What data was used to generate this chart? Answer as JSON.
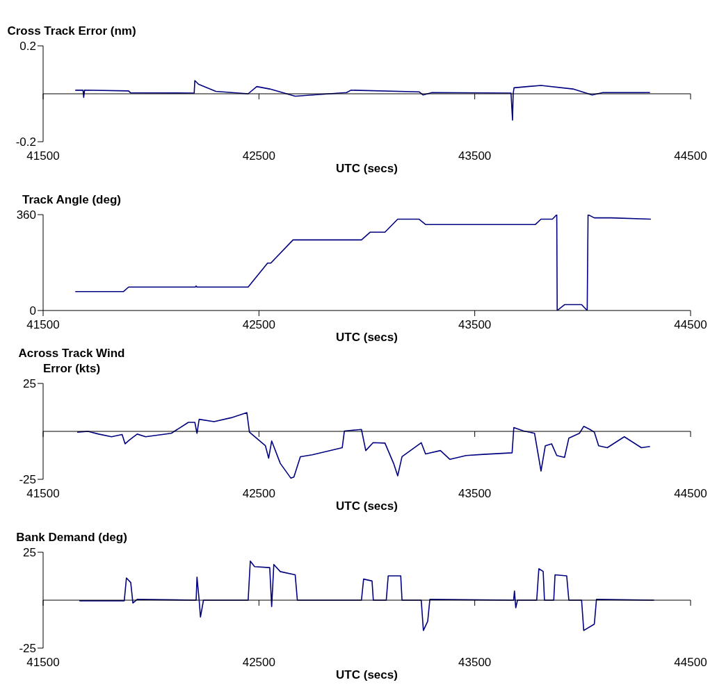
{
  "chart_data": [
    {
      "type": "line",
      "ylabel": "Cross Track Error (nm)",
      "xlabel": "UTC (secs)",
      "xlim": [
        41500,
        44500
      ],
      "xticks": [
        41500,
        42500,
        43500,
        44500
      ],
      "ylim": [
        -0.2,
        0.2
      ],
      "yticks": [
        -0.2,
        0.2
      ],
      "x": [
        41649,
        41685,
        41688,
        41692,
        41896,
        41905,
        42200,
        42203,
        42220,
        42300,
        42450,
        42490,
        42550,
        42668,
        42906,
        42926,
        43242,
        43260,
        43302,
        43668,
        43675,
        43678,
        43682,
        43807,
        43955,
        44044,
        44094,
        44312
      ],
      "series": [
        {
          "color": "#000080",
          "values": [
            0.015,
            0.015,
            -0.015,
            0.015,
            0.012,
            0.004,
            0.003,
            0.055,
            0.04,
            0.01,
            0.0,
            0.03,
            0.02,
            -0.01,
            0.005,
            0.015,
            0.008,
            -0.005,
            0.005,
            0.003,
            -0.11,
            0.0,
            0.025,
            0.035,
            0.02,
            -0.005,
            0.005,
            0.005
          ]
        }
      ]
    },
    {
      "type": "line",
      "ylabel": "Track Angle (deg)",
      "xlabel": "UTC (secs)",
      "xlim": [
        41500,
        44500
      ],
      "xticks": [
        41500,
        42500,
        43500,
        44500
      ],
      "ylim": [
        0,
        360
      ],
      "yticks": [
        0,
        360
      ],
      "x": [
        41649,
        41872,
        41896,
        42205,
        42209,
        42213,
        42450,
        42540,
        42555,
        42658,
        42975,
        43015,
        43084,
        43143,
        43242,
        43272,
        43781,
        43807,
        43860,
        43880,
        43882,
        43916,
        43995,
        44021,
        44025,
        44054,
        44133,
        44316
      ],
      "series": [
        {
          "color": "#000080",
          "values": [
            71,
            71,
            88,
            88,
            92,
            88,
            88,
            178,
            178,
            265,
            265,
            294,
            294,
            343,
            343,
            323,
            323,
            343,
            343,
            360,
            0,
            22,
            22,
            0,
            360,
            348,
            348,
            343
          ]
        }
      ]
    },
    {
      "type": "line",
      "ylabel": "Across Track Wind Error (kts)",
      "xlabel": "UTC (secs)",
      "xlim": [
        41500,
        44500
      ],
      "xticks": [
        41500,
        42500,
        43500,
        44500
      ],
      "ylim": [
        -25,
        25
      ],
      "yticks": [
        -25,
        25
      ],
      "x": [
        41658,
        41708,
        41757,
        41817,
        41866,
        41880,
        41900,
        41936,
        41975,
        42094,
        42173,
        42203,
        42213,
        42223,
        42292,
        42371,
        42444,
        42456,
        42530,
        42545,
        42559,
        42599,
        42648,
        42662,
        42692,
        42747,
        42886,
        42896,
        42975,
        42995,
        43029,
        43084,
        43124,
        43143,
        43163,
        43252,
        43272,
        43341,
        43385,
        43460,
        43539,
        43673,
        43681,
        43727,
        43777,
        43807,
        43827,
        43856,
        43880,
        43916,
        43936,
        43985,
        44005,
        44034,
        44054,
        44074,
        44114,
        44193,
        44272,
        44312
      ],
      "series": [
        {
          "color": "#000080",
          "values": [
            -0.4,
            0,
            -1.4,
            -2.8,
            -1.6,
            -6.5,
            -4.5,
            -1.4,
            -2.8,
            -1,
            4.7,
            4.7,
            -1,
            6.3,
            5.1,
            7.1,
            9.8,
            -0.4,
            -7.5,
            -14,
            -5,
            -16.7,
            -24.4,
            -23.8,
            -13.2,
            -12.2,
            -8.5,
            0.2,
            1,
            -10,
            -5.9,
            -6.1,
            -16.7,
            -23.2,
            -13.2,
            -5.9,
            -11.8,
            -10,
            -14.6,
            -12.6,
            -12,
            -11.2,
            2,
            0.2,
            -1,
            -20.7,
            -7.5,
            -6.5,
            -12.6,
            -13.6,
            -3.5,
            -1,
            2.6,
            1,
            -0.4,
            -7.5,
            -8.5,
            -2.8,
            -8.5,
            -7.9
          ]
        }
      ]
    },
    {
      "type": "line",
      "ylabel": "Bank Demand (deg)",
      "xlabel": "UTC (secs)",
      "xlim": [
        41500,
        44500
      ],
      "xticks": [
        41500,
        42500,
        43500,
        44500
      ],
      "ylim": [
        -25,
        25
      ],
      "yticks": [
        -25,
        25
      ],
      "x": [
        41668,
        41876,
        41886,
        41906,
        41916,
        41936,
        42209,
        42213,
        42223,
        42229,
        42243,
        42450,
        42460,
        42480,
        42550,
        42559,
        42569,
        42599,
        42668,
        42678,
        42975,
        42985,
        43024,
        43030,
        43090,
        43099,
        43157,
        43163,
        43252,
        43262,
        43282,
        43292,
        43680,
        43684,
        43690,
        43698,
        43787,
        43797,
        43817,
        43823,
        43866,
        43872,
        43926,
        43936,
        43995,
        44005,
        44054,
        44064,
        44331
      ],
      "series": [
        {
          "color": "#000080",
          "values": [
            -0.3,
            -0.3,
            11.6,
            9.2,
            -1.5,
            0.4,
            0,
            12,
            0,
            -8.8,
            0,
            0,
            20.4,
            17.5,
            17,
            -3.3,
            18.6,
            14.9,
            13.2,
            0,
            0,
            11,
            10,
            0,
            0,
            12.7,
            12.7,
            0,
            0,
            -15.8,
            -11,
            0.4,
            0,
            4.8,
            -4,
            0,
            0,
            16.4,
            15,
            0,
            0,
            13.2,
            12.7,
            0,
            0,
            -15.8,
            -12.5,
            0.4,
            0
          ]
        }
      ]
    }
  ]
}
